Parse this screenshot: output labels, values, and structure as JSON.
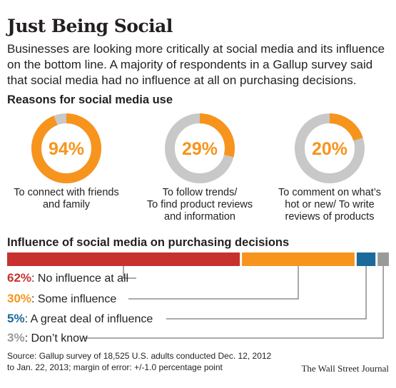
{
  "title": "Just Being Social",
  "intro": "Businesses are looking more critically at social media and its influence on the bottom line. A majority of respondents in a Gallup survey said that social media had no influence at all on purchasing decisions.",
  "colors": {
    "orange": "#f7941d",
    "gray": "#c8c8c8",
    "red": "#c7322e",
    "blue": "#1b6a9c",
    "legend_gray": "#9a9a9a",
    "connector": "#555555"
  },
  "chart_data": [
    {
      "type": "pie",
      "title": "Reasons for social media use",
      "series": [
        {
          "value": 94,
          "value_label": "94%",
          "label_lines": [
            "To connect with friends",
            "and family"
          ]
        },
        {
          "value": 29,
          "value_label": "29%",
          "label_lines": [
            "To follow trends/",
            "To find product reviews",
            "and information"
          ]
        },
        {
          "value": 20,
          "value_label": "20%",
          "label_lines": [
            "To comment on what’s",
            "hot or new/ To write",
            "reviews of products"
          ]
        }
      ]
    },
    {
      "type": "bar",
      "stacked": true,
      "orientation": "horizontal",
      "title": "Influence of social media on purchasing decisions",
      "series": [
        {
          "pct_label": "62%",
          "value": 62,
          "label": "No influence at all",
          "color": "#c7322e"
        },
        {
          "pct_label": "30%",
          "value": 30,
          "label": "Some influence",
          "color": "#f7941d"
        },
        {
          "pct_label": "5%",
          "value": 5,
          "label": "A great deal of influence",
          "color": "#1b6a9c"
        },
        {
          "pct_label": "3%",
          "value": 3,
          "label": "Don’t know",
          "color": "#9a9a9a"
        }
      ]
    }
  ],
  "source": [
    "Source: Gallup survey of 18,525 U.S. adults conducted Dec. 12, 2012",
    "to Jan. 22, 2013; margin of error: +/-1.0 percentage point"
  ],
  "credit": "The Wall Street Journal"
}
